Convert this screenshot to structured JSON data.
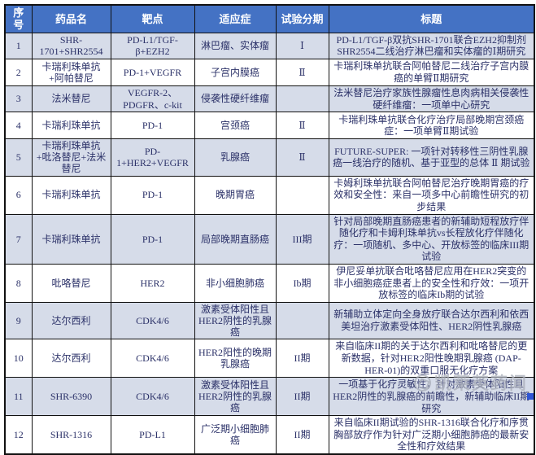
{
  "table": {
    "headers": [
      "序号",
      "药品名",
      "靶点",
      "适应症",
      "试验分期",
      "标题"
    ],
    "rows": [
      {
        "no": "1",
        "drug": "SHR-1701+SHR2554",
        "target": "PD-L1/TGF-β+EZH2",
        "indication": "淋巴瘤、实体瘤",
        "phase": "Ⅰ",
        "title": "PD-L1/TGF-β双抗SHR-1701联合EZH2抑制剂SHR2554二线治疗淋巴瘤和实体瘤的Ⅰ期研究"
      },
      {
        "no": "2",
        "drug": "卡瑞利珠单抗+阿帕替尼",
        "target": "PD-1+VEGFR",
        "indication": "子宫内膜癌",
        "phase": "Ⅱ",
        "title": "卡瑞利珠单抗联合阿帕替尼二线治疗子宫内膜癌的单臂Ⅱ期研究"
      },
      {
        "no": "3",
        "drug": "法米替尼",
        "target": "VEGFR-2、PDGFR、c-kit",
        "indication": "侵袭性硬纤维瘤",
        "phase": "",
        "title": "法米替尼治疗家族性腺瘤性息肉病相关侵袭性硬纤维瘤：一项单中心研究"
      },
      {
        "no": "4",
        "drug": "卡瑞利珠单抗",
        "target": "PD-1",
        "indication": "宫颈癌",
        "phase": "Ⅱ",
        "title": "卡瑞利珠单抗联合化疗治疗局部晚期宫颈癌症：一项单臂Ⅱ期试验"
      },
      {
        "no": "5",
        "drug": "卡瑞利珠单抗+吡洛替尼+法米替尼",
        "target": "PD-1+HER2+VEGFR",
        "indication": "乳腺癌",
        "phase": "Ⅱ",
        "title": "FUTURE-SUPER: 一项针对转移性三阴性乳腺癌一线治疗的随机、基于亚型的总体 Ⅱ 期试验"
      },
      {
        "no": "6",
        "drug": "卡瑞利珠单抗",
        "target": "PD-1",
        "indication": "晚期胃癌",
        "phase": "",
        "title": "卡姆利珠单抗联合阿帕替尼治疗晚期胃癌的疗效和安全性：来自一项多中心前瞻性研究的初步结果"
      },
      {
        "no": "7",
        "drug": "卡瑞利珠单抗",
        "target": "PD-1",
        "indication": "局部晚期直肠癌",
        "phase": "III期",
        "title": "针对局部晚期直肠癌患者的新辅助短程放疗伴随化疗和卡姆利珠单抗vs长程放化疗伴随化疗：一项随机、多中心、开放标签的临床III期试验"
      },
      {
        "no": "8",
        "drug": "吡咯替尼",
        "target": "HER2",
        "indication": "非小细胞肺癌",
        "phase": "Ib期",
        "title": "伊尼妥单抗联合吡咯替尼应用在HER2突变的非小细胞癌症患者上的安全性和疗效：一项开放标签的临床Ib期的试验"
      },
      {
        "no": "9",
        "drug": "达尔西利",
        "target": "CDK4/6",
        "indication": "激素受体阳性且HER2阴性的乳腺癌",
        "phase": "",
        "title": "新辅助立体定向全身放疗联合达尔西利和依西美坦治疗激素受体阳性、HER2阴性乳腺癌"
      },
      {
        "no": "10",
        "drug": "达尔西利",
        "target": "CDK4/6",
        "indication": "HER2阳性的晚期乳腺癌",
        "phase": "II期",
        "title": "来自临床II期的关于达尔西利和吡咯替尼的更新数据，针对HER2阳性晚期乳腺癌 (DAP-HER-01)的双重口服无化疗方案"
      },
      {
        "no": "11",
        "drug": "SHR-6390",
        "target": "CDK4/6",
        "indication": "激素受体阳性且HER2阴性的乳腺癌",
        "phase": "II期",
        "title": "一项基于化疗灵敏性，针对激素受体阳性且HER2阴性的乳腺癌的前瞻性，新辅助临床II期研究"
      },
      {
        "no": "12",
        "drug": "SHR-1316",
        "target": "PD-L1",
        "indication": "广泛期小细胞肺癌",
        "phase": "II期",
        "title": "来自临床II期试验的SHR-1316联合化疗和序贯胸部放疗作为针对广泛期小细胞肺癌的最新安全性和疗效结果"
      }
    ]
  },
  "watermark": {
    "label": "凯莱英药闻",
    "icon": "kailaiying-logo-icon"
  },
  "colors": {
    "header_bg": "#4472C4",
    "header_text": "#FFFFFF",
    "row_alt_bg": "#D6DCE9",
    "row_bg": "#FFFFFF",
    "body_text": "#2B3168",
    "border": "#111111",
    "watermark_gray": "#A9AEB9",
    "corner_marker_blue": "#2F55D4"
  }
}
